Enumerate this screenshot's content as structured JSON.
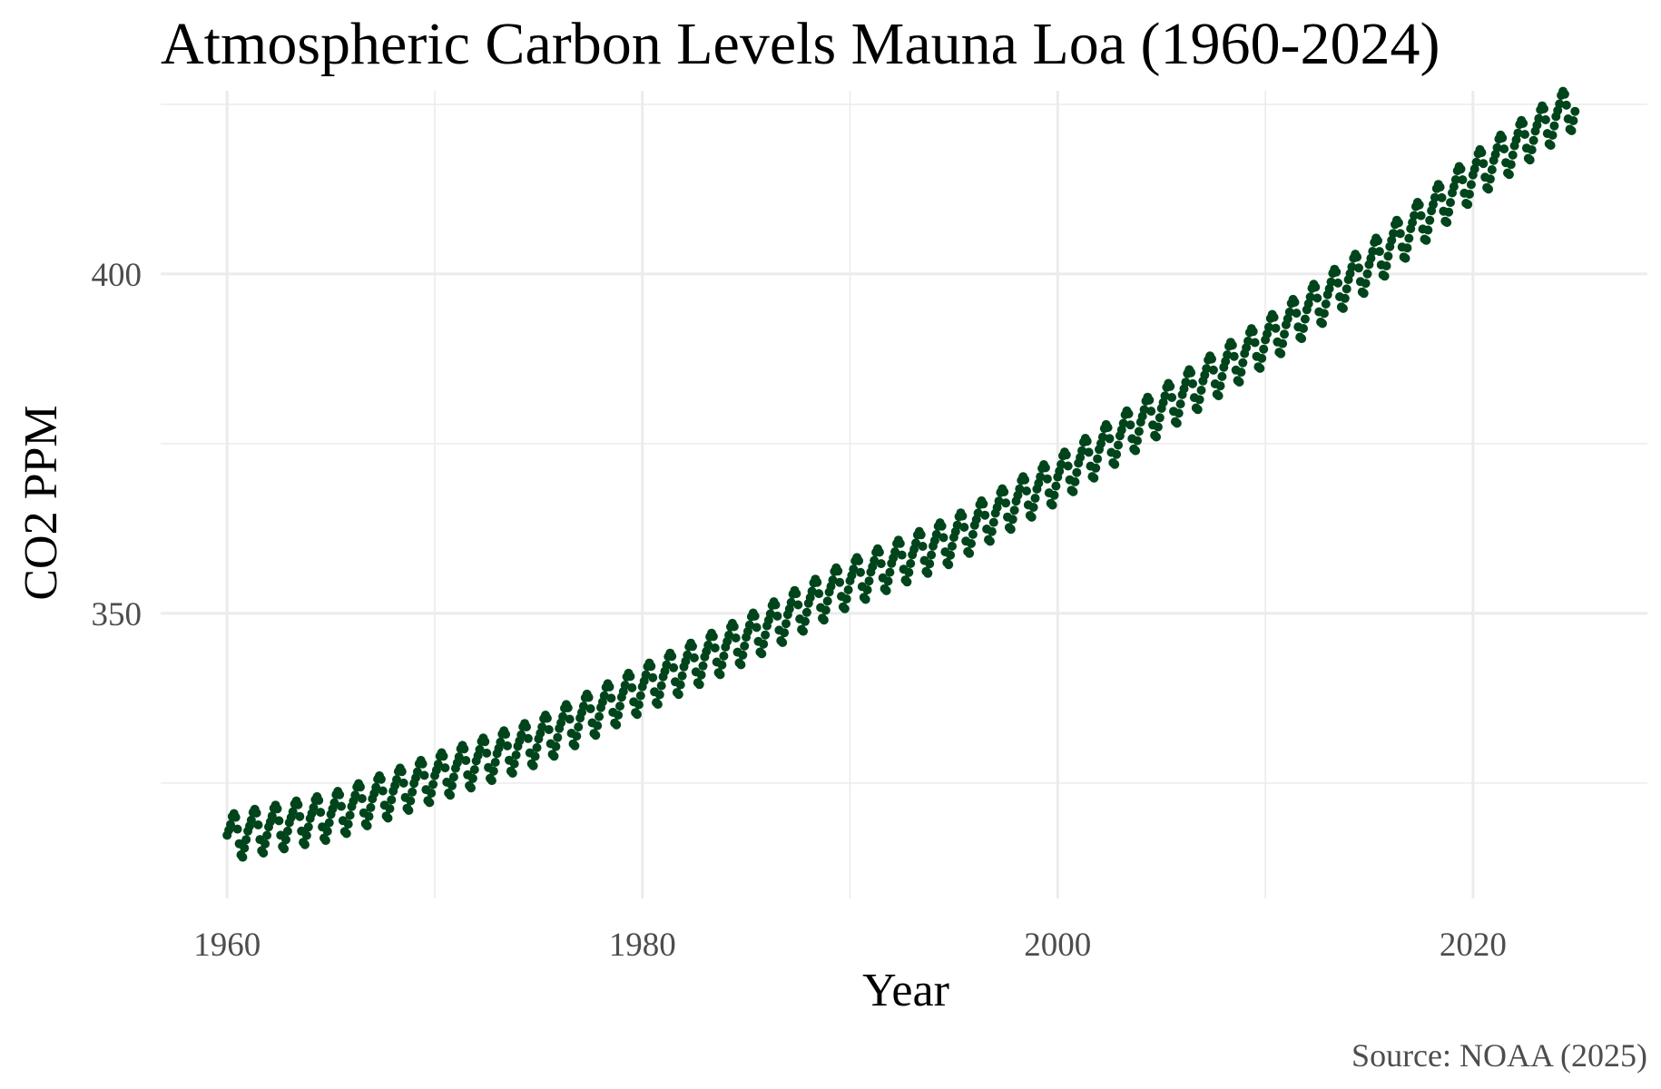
{
  "chart_data": {
    "type": "scatter",
    "title": "Atmospheric Carbon Levels Mauna Loa (1960-2024)",
    "xlabel": "Year",
    "ylabel": "CO2 PPM",
    "caption": "Source: NOAA (2025)",
    "xlim": [
      1956.8,
      2028.4
    ],
    "ylim": [
      308.0,
      427.0
    ],
    "x_ticks": [
      1960,
      1980,
      2000,
      2020
    ],
    "x_tick_labels": [
      "1960",
      "1980",
      "2000",
      "2020"
    ],
    "y_ticks": [
      350,
      400
    ],
    "y_tick_labels": [
      "350",
      "400"
    ],
    "x_minor_ticks": [
      1970,
      1990,
      2010
    ],
    "y_minor_ticks": [
      325,
      375,
      425
    ],
    "grid": true,
    "legend": "none",
    "point_color": "#00441b",
    "series": [
      {
        "year_start": 1960,
        "year_end": 2024,
        "points_per_year": 12,
        "annual_mean_ppm": [
          [
            1960,
            316.9
          ],
          [
            1965,
            320.0
          ],
          [
            1970,
            325.7
          ],
          [
            1975,
            331.1
          ],
          [
            1980,
            338.8
          ],
          [
            1985,
            346.1
          ],
          [
            1990,
            354.4
          ],
          [
            1995,
            360.8
          ],
          [
            2000,
            369.7
          ],
          [
            2005,
            379.8
          ],
          [
            2010,
            389.9
          ],
          [
            2015,
            401.0
          ],
          [
            2020,
            414.2
          ],
          [
            2024,
            422.8
          ]
        ],
        "seasonal_offset_ppm": [
          0.4,
          1.1,
          1.9,
          3.0,
          3.4,
          2.8,
          1.0,
          -1.2,
          -2.9,
          -3.3,
          -2.0,
          -0.8
        ]
      }
    ]
  }
}
